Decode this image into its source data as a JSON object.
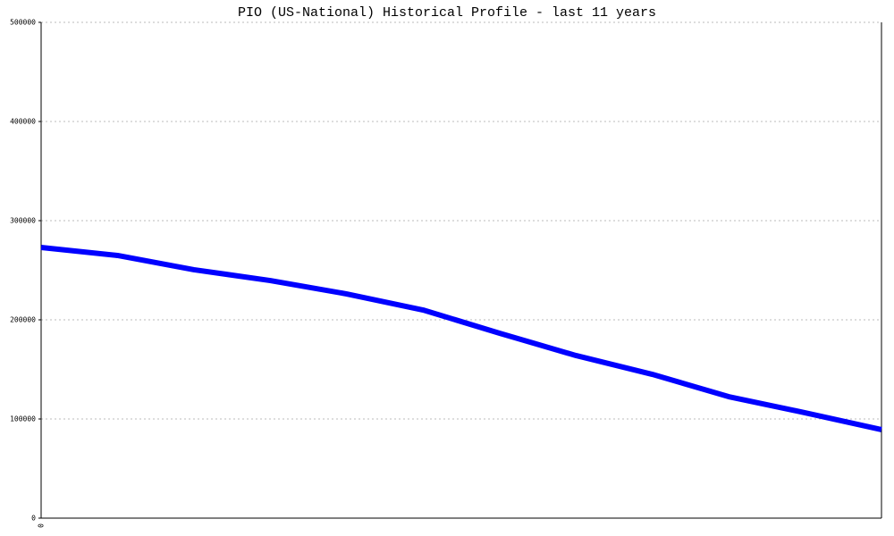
{
  "chart_data": {
    "type": "line",
    "title": "PIO (US-National) Historical Profile - last 11 years",
    "categories": [
      "0",
      null,
      null,
      null,
      null,
      null,
      null,
      null,
      null,
      null,
      null,
      null
    ],
    "series": [
      {
        "name": "PIO",
        "color": "#0000ff",
        "values": [
          273000,
          264900,
          250500,
          239600,
          226100,
          209900,
          186500,
          164000,
          145000,
          122500,
          106300,
          89200
        ]
      }
    ],
    "ylim": [
      0,
      500000
    ],
    "yticks": [
      0,
      100000,
      200000,
      300000,
      400000,
      500000
    ],
    "grid": true
  }
}
